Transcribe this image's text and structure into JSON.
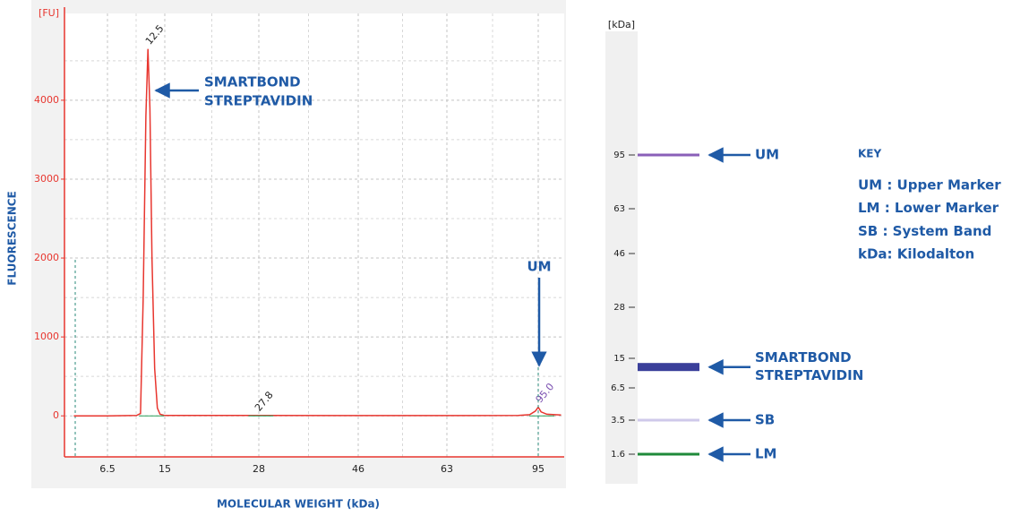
{
  "chart_data": [
    {
      "type": "line",
      "y_unit_label": "[FU]",
      "ylabel": "FLUORESCENCE",
      "xlabel": "MOLECULAR WEIGHT (kDa)",
      "ylim": [
        -520,
        5100
      ],
      "yticks": [
        0,
        1000,
        2000,
        3000,
        4000
      ],
      "xticks": [
        6.5,
        15,
        28,
        46,
        63,
        95
      ],
      "grid": true,
      "x": [
        1.5,
        6.5,
        10.8,
        11.4,
        11.8,
        12.2,
        12.5,
        12.8,
        13.1,
        13.5,
        13.9,
        14.3,
        15,
        28,
        46,
        63,
        88,
        92,
        94,
        95,
        96,
        98,
        103
      ],
      "series": [
        {
          "color": "#e8362f",
          "values": [
            0,
            0,
            5,
            30,
            1500,
            3800,
            4650,
            3900,
            2000,
            600,
            100,
            20,
            5,
            5,
            3,
            3,
            5,
            15,
            60,
            110,
            50,
            20,
            10
          ]
        }
      ],
      "peaks": [
        {
          "value": 12.5,
          "label": "12.5",
          "color": "#222222"
        },
        {
          "value": 27.8,
          "label": "27.8",
          "color": "#222222"
        },
        {
          "value": 95,
          "label": "95.0",
          "color": "#7a4fb0"
        }
      ],
      "annotations": [
        [
          "SMARTBOND",
          "STREPTAVIDIN"
        ],
        [
          "UM"
        ]
      ]
    },
    {
      "type": "gel",
      "ylabel": "[kDa]",
      "yticks": [
        95,
        63,
        46,
        28,
        15,
        6.5,
        3.5,
        1.6
      ],
      "bands": [
        {
          "value": 95,
          "label": [
            "UM"
          ],
          "color": "#8a5fb8"
        },
        {
          "value": 12.5,
          "label": [
            "SMARTBOND",
            "STREPTAVIDIN"
          ],
          "color": "#3a3f9a"
        },
        {
          "value": 3.5,
          "label": [
            "SB"
          ],
          "color": "#cfc9ea"
        },
        {
          "value": 1.6,
          "label": [
            "LM"
          ],
          "color": "#1f8a3a"
        }
      ],
      "key": {
        "title": "KEY",
        "entries": [
          "UM : Upper Marker",
          "LM : Lower Marker",
          "SB : System Band",
          "kDa: Kilodalton"
        ]
      }
    }
  ]
}
